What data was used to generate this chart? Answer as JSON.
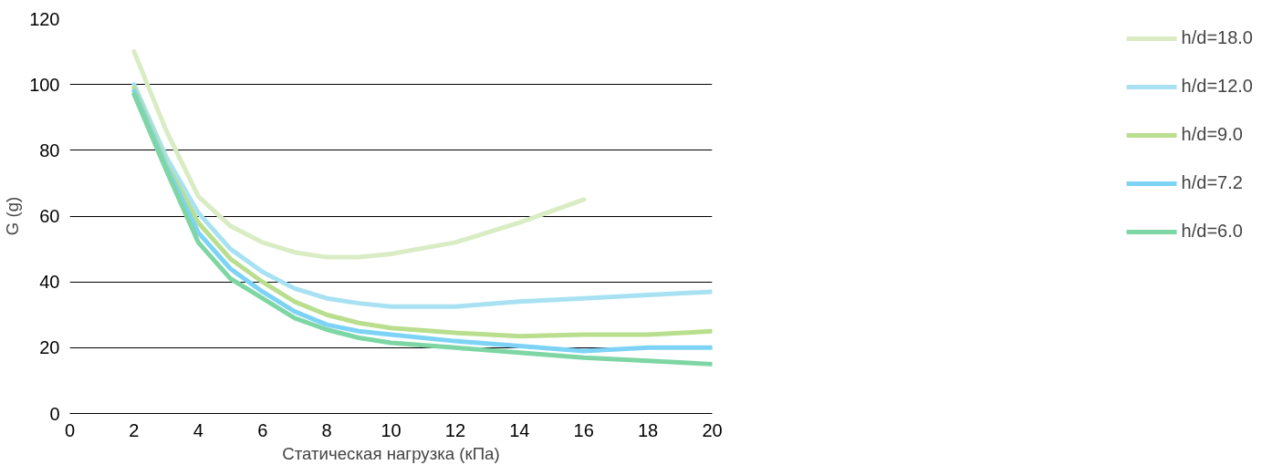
{
  "chart_data": {
    "type": "line",
    "xlabel": "Статическая нагрузка (кПа)",
    "ylabel": "G (g)",
    "xlim": [
      0,
      20
    ],
    "ylim": [
      0,
      120
    ],
    "xticks": [
      0,
      2,
      4,
      6,
      8,
      10,
      12,
      14,
      16,
      18,
      20
    ],
    "yticks": [
      0,
      20,
      40,
      60,
      80,
      100,
      120
    ],
    "grid": "y",
    "legend": "right",
    "marker": "none",
    "line_style": "solid",
    "x": [
      2,
      3,
      4,
      5,
      6,
      7,
      8,
      9,
      10,
      12,
      14,
      16,
      18,
      20
    ],
    "series": [
      {
        "name": "h/d=18.0",
        "color": "#d9ecc4",
        "values": [
          110,
          86,
          66,
          57,
          52,
          49,
          47.5,
          47.5,
          48.5,
          52,
          58,
          65,
          null,
          null
        ]
      },
      {
        "name": "h/d=12.0",
        "color": "#a8e2f2",
        "values": [
          100,
          78,
          61,
          50,
          43,
          38,
          35,
          33.5,
          32.5,
          32.5,
          34,
          35,
          36,
          37
        ]
      },
      {
        "name": "h/d=9.0",
        "color": "#b8de8e",
        "values": [
          99,
          76,
          58,
          47,
          40,
          34,
          30,
          27.5,
          26,
          24.5,
          23.5,
          24,
          24,
          25
        ]
      },
      {
        "name": "h/d=7.2",
        "color": "#7dd3f5",
        "values": [
          98,
          75,
          55,
          44,
          37,
          31,
          27,
          25,
          24,
          22,
          20.5,
          19,
          20,
          20
        ]
      },
      {
        "name": "h/d=6.0",
        "color": "#7dd6a4",
        "values": [
          97,
          74,
          52,
          41,
          35,
          29,
          25.5,
          23,
          21.5,
          20,
          18.5,
          17,
          16,
          15
        ]
      }
    ]
  }
}
